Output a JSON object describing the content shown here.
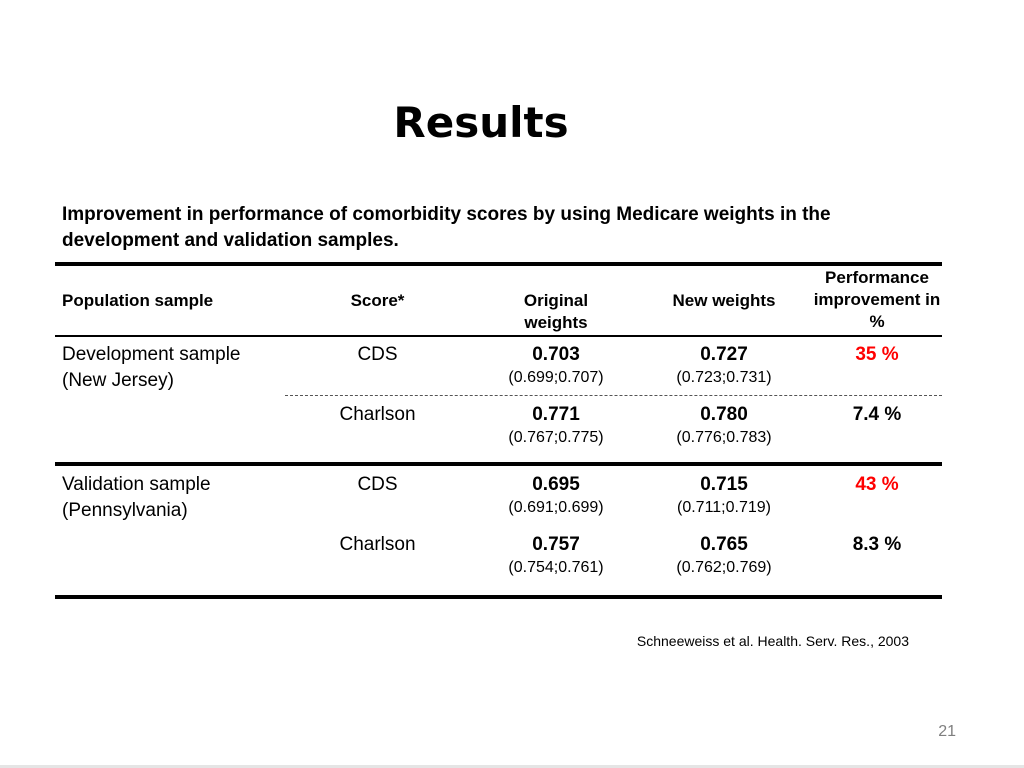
{
  "slide": {
    "title": "Results",
    "caption": "Improvement in performance of comorbidity scores by using Medicare weights in the development and validation samples.",
    "citation": "Schneeweiss et al. Health. Serv. Res., 2003",
    "page_number": "21"
  },
  "table": {
    "headers": {
      "population": "Population sample",
      "score": "Score*",
      "original": "Original weights",
      "new": "New weights",
      "improvement": "Performance improvement in %"
    },
    "groups": [
      {
        "population": "Development sample (New Jersey)",
        "rows": [
          {
            "score": "CDS",
            "original": "0.703",
            "original_ci": "(0.699;0.707)",
            "new": "0.727",
            "new_ci": "(0.723;0.731)",
            "improvement": "35 %",
            "highlight": "#ff0000"
          },
          {
            "score": "Charlson",
            "original": "0.771",
            "original_ci": "(0.767;0.775)",
            "new": "0.780",
            "new_ci": "(0.776;0.783)",
            "improvement": "7.4 %"
          }
        ]
      },
      {
        "population": "Validation sample (Pennsylvania)",
        "rows": [
          {
            "score": "CDS",
            "original": "0.695",
            "original_ci": "(0.691;0.699)",
            "new": "0.715",
            "new_ci": "(0.711;0.719)",
            "improvement": "43 %",
            "highlight": "#ff0000"
          },
          {
            "score": "Charlson",
            "original": "0.757",
            "original_ci": "(0.754;0.761)",
            "new": "0.765",
            "new_ci": "(0.762;0.769)",
            "improvement": "8.3 %"
          }
        ]
      }
    ]
  }
}
